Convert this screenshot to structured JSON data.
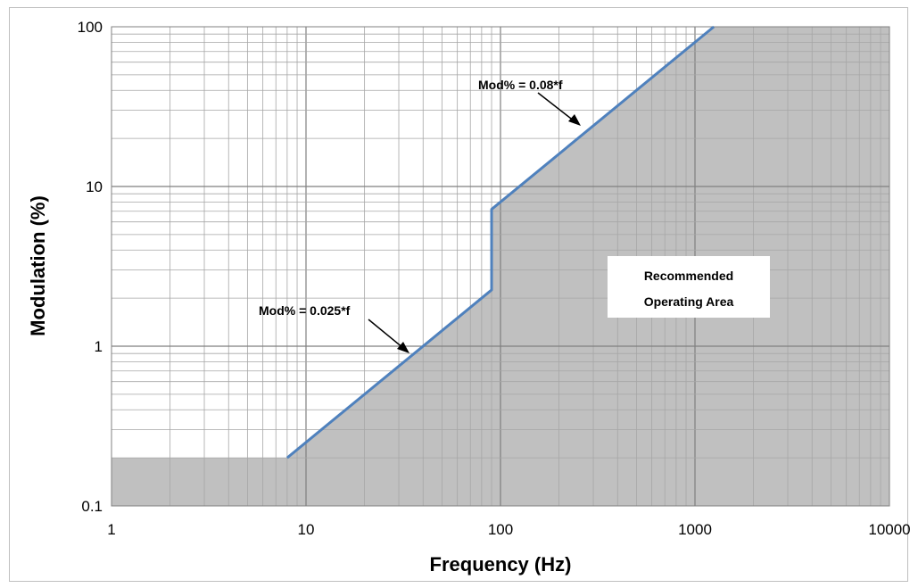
{
  "chart_data": {
    "type": "area",
    "x_scale": "log",
    "y_scale": "log",
    "xlim": [
      1,
      10000
    ],
    "ylim": [
      0.1,
      100
    ],
    "grid": true,
    "xlabel": "Frequency (Hz)",
    "ylabel": "Modulation (%)",
    "x_ticks": [
      "1",
      "10",
      "100",
      "1000",
      "10000"
    ],
    "y_ticks": [
      "0.1",
      "1",
      "10",
      "100"
    ],
    "x_tick_values": [
      1,
      10,
      100,
      1000,
      10000
    ],
    "y_tick_values": [
      0.1,
      1,
      10,
      100
    ],
    "series": [
      {
        "x": [
          8,
          90,
          90,
          1250
        ],
        "y": [
          0.2,
          2.25,
          7.2,
          100
        ],
        "color": "#4f81bd"
      }
    ],
    "shaded_region": {
      "fill": "#c0c0c0",
      "boundary_x": [
        1,
        8,
        8,
        90,
        90,
        1250,
        1250
      ],
      "boundary_y": [
        0.2,
        0.2,
        0.2,
        2.25,
        7.2,
        100,
        100
      ]
    },
    "annotations": [
      {
        "text": "Mod% = 0.08*f",
        "points_to_x": 250,
        "points_to_y": 20
      },
      {
        "text": "Mod% = 0.025*f",
        "points_to_x": 35,
        "points_to_y": 0.85
      }
    ],
    "region_label": [
      "Recommended",
      "Operating Area"
    ]
  }
}
